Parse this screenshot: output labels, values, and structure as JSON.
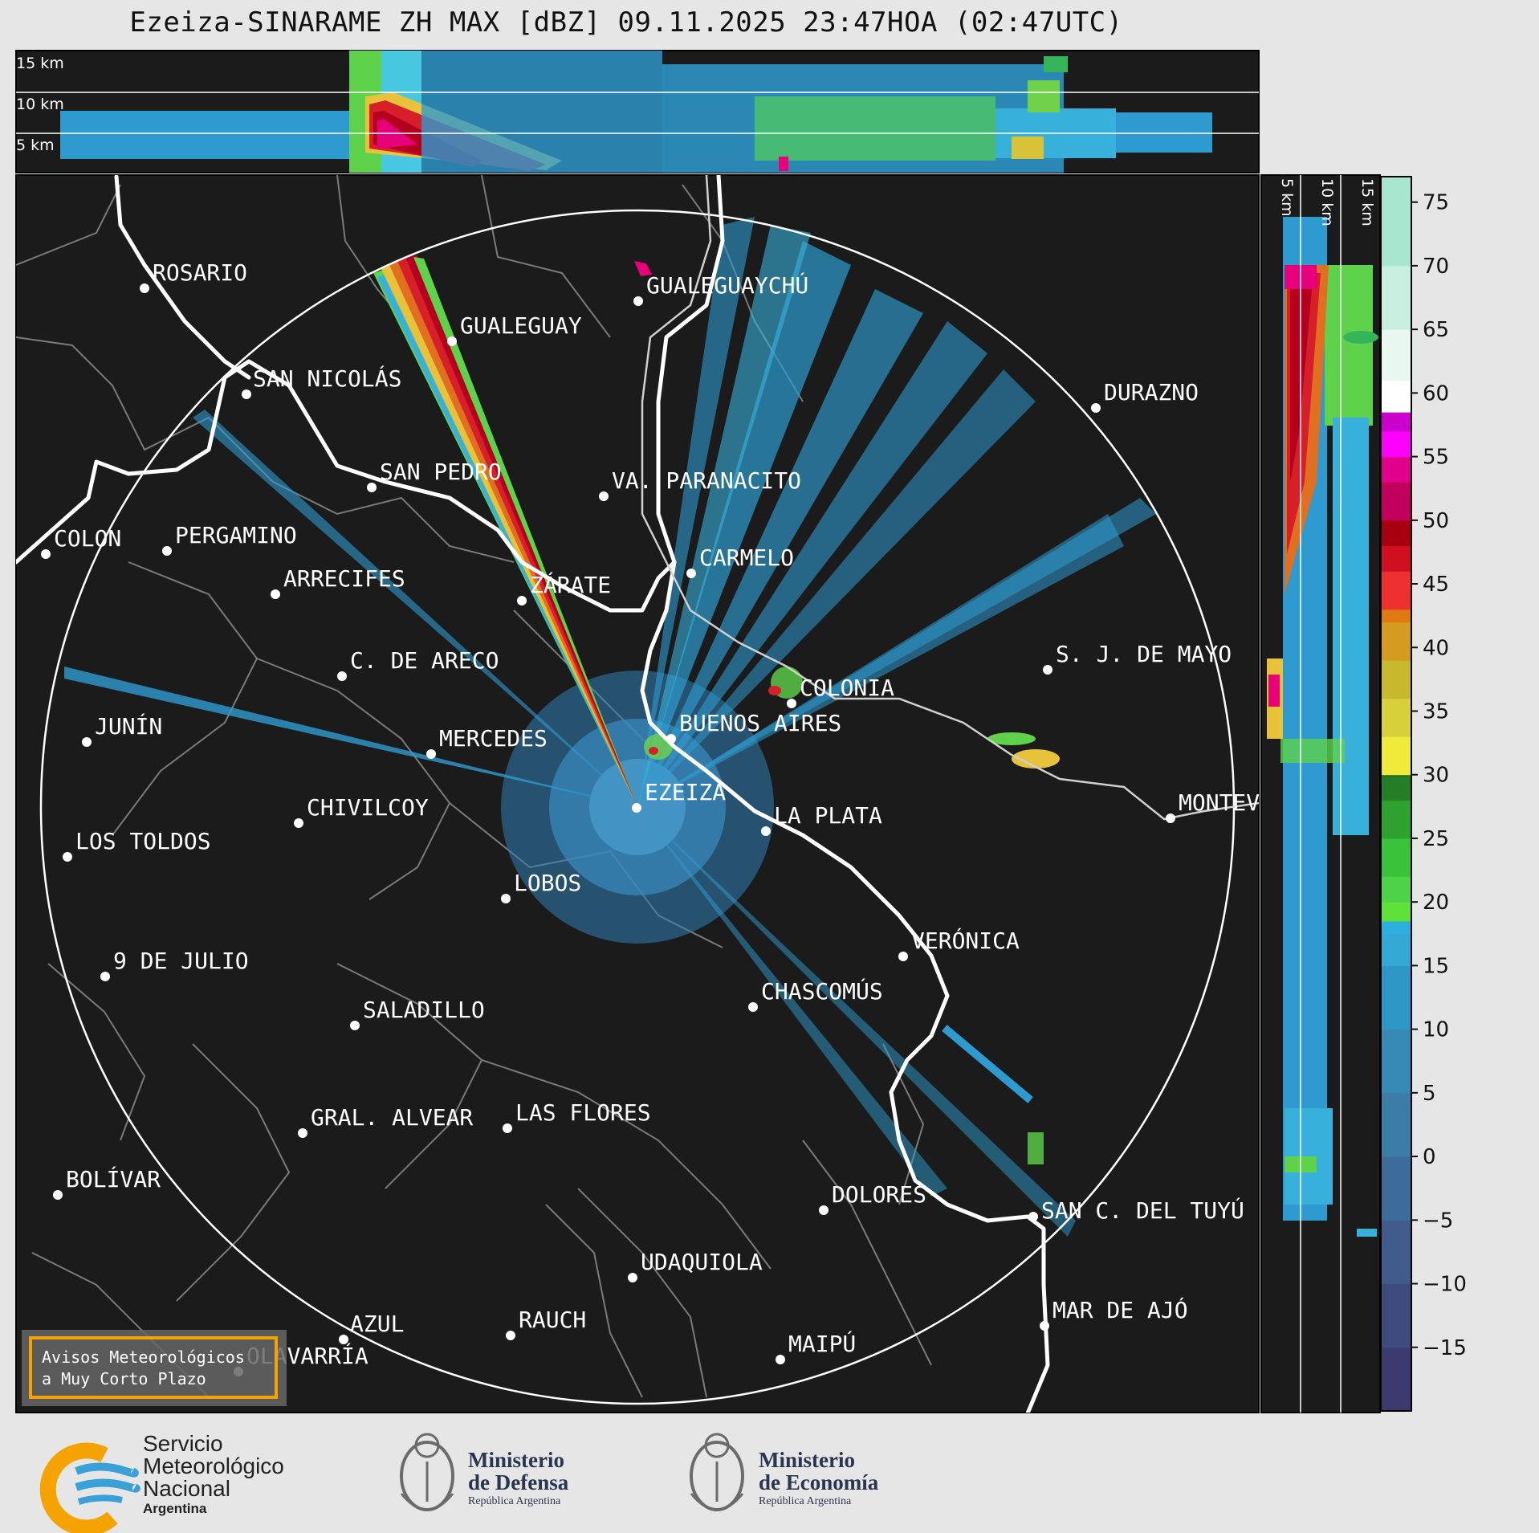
{
  "title": "Ezeiza-SINARAME ZH MAX [dBZ] 09.11.2025 23:47HOA (02:47UTC)",
  "top_panel": {
    "heights": [
      "15 km",
      "10 km",
      "5 km"
    ]
  },
  "side_panel": {
    "heights": [
      "5 km",
      "10 km",
      "15 km"
    ]
  },
  "colorbar": {
    "ticks": [
      "75",
      "70",
      "65",
      "60",
      "55",
      "50",
      "45",
      "40",
      "35",
      "30",
      "25",
      "20",
      "15",
      "10",
      "5",
      "0",
      "−5",
      "−10",
      "−15"
    ],
    "tick_values": [
      75,
      70,
      65,
      60,
      55,
      50,
      45,
      40,
      35,
      30,
      25,
      20,
      15,
      10,
      5,
      0,
      -5,
      -10,
      -15
    ],
    "range": [
      -20,
      77
    ]
  },
  "cities": [
    {
      "name": "ROSARIO"
    },
    {
      "name": "GUALEGUAYCHÚ"
    },
    {
      "name": "GUALEGUAY"
    },
    {
      "name": "SAN NICOLÁS"
    },
    {
      "name": "DURAZNO"
    },
    {
      "name": "SAN PEDRO"
    },
    {
      "name": "VA. PARANACITO"
    },
    {
      "name": "COLON"
    },
    {
      "name": "PERGAMINO"
    },
    {
      "name": "CARMELO"
    },
    {
      "name": "ARRECIFES"
    },
    {
      "name": "ZÁRATE"
    },
    {
      "name": "S. J. DE MAYO"
    },
    {
      "name": "C. DE ARECO"
    },
    {
      "name": "COLONIA"
    },
    {
      "name": "BUENOS AIRES"
    },
    {
      "name": "JUNÍN"
    },
    {
      "name": "MERCEDES"
    },
    {
      "name": "EZEIZA"
    },
    {
      "name": "CHIVILCOY"
    },
    {
      "name": "MONTEV"
    },
    {
      "name": "LA PLATA"
    },
    {
      "name": "LOS TOLDOS"
    },
    {
      "name": "LOBOS"
    },
    {
      "name": "VERÓNICA"
    },
    {
      "name": "9 DE JULIO"
    },
    {
      "name": "CHASCOMÚS"
    },
    {
      "name": "SALADILLO"
    },
    {
      "name": "GRAL. ALVEAR"
    },
    {
      "name": "LAS FLORES"
    },
    {
      "name": "BOLÍVAR"
    },
    {
      "name": "DOLORES"
    },
    {
      "name": "SAN C. DEL TUYÚ"
    },
    {
      "name": "UDAQUIOLA"
    },
    {
      "name": "MAR DE AJÓ"
    },
    {
      "name": "AZUL"
    },
    {
      "name": "RAUCH"
    },
    {
      "name": "OLAVARRÍA"
    },
    {
      "name": "MAIPÚ"
    }
  ],
  "warning_box": {
    "line1": "Avisos Meteorológicos",
    "line2": "a Muy Corto Plazo"
  },
  "logos": {
    "smn": {
      "line1": "Servicio",
      "line2": "Meteorológico",
      "line3": "Nacional",
      "line4": "Argentina"
    },
    "defensa": {
      "line1": "Ministerio",
      "line2": "de Defensa",
      "line3": "República Argentina"
    },
    "economia": {
      "line1": "Ministerio",
      "line2": "de Economía",
      "line3": "República Argentina"
    }
  },
  "colors": {
    "background": "#1b1b1b",
    "page": "#e6e6e6",
    "warning_border": "#f5a300",
    "smn_orange": "#f5a300",
    "smn_blue": "#3aa0d8"
  }
}
